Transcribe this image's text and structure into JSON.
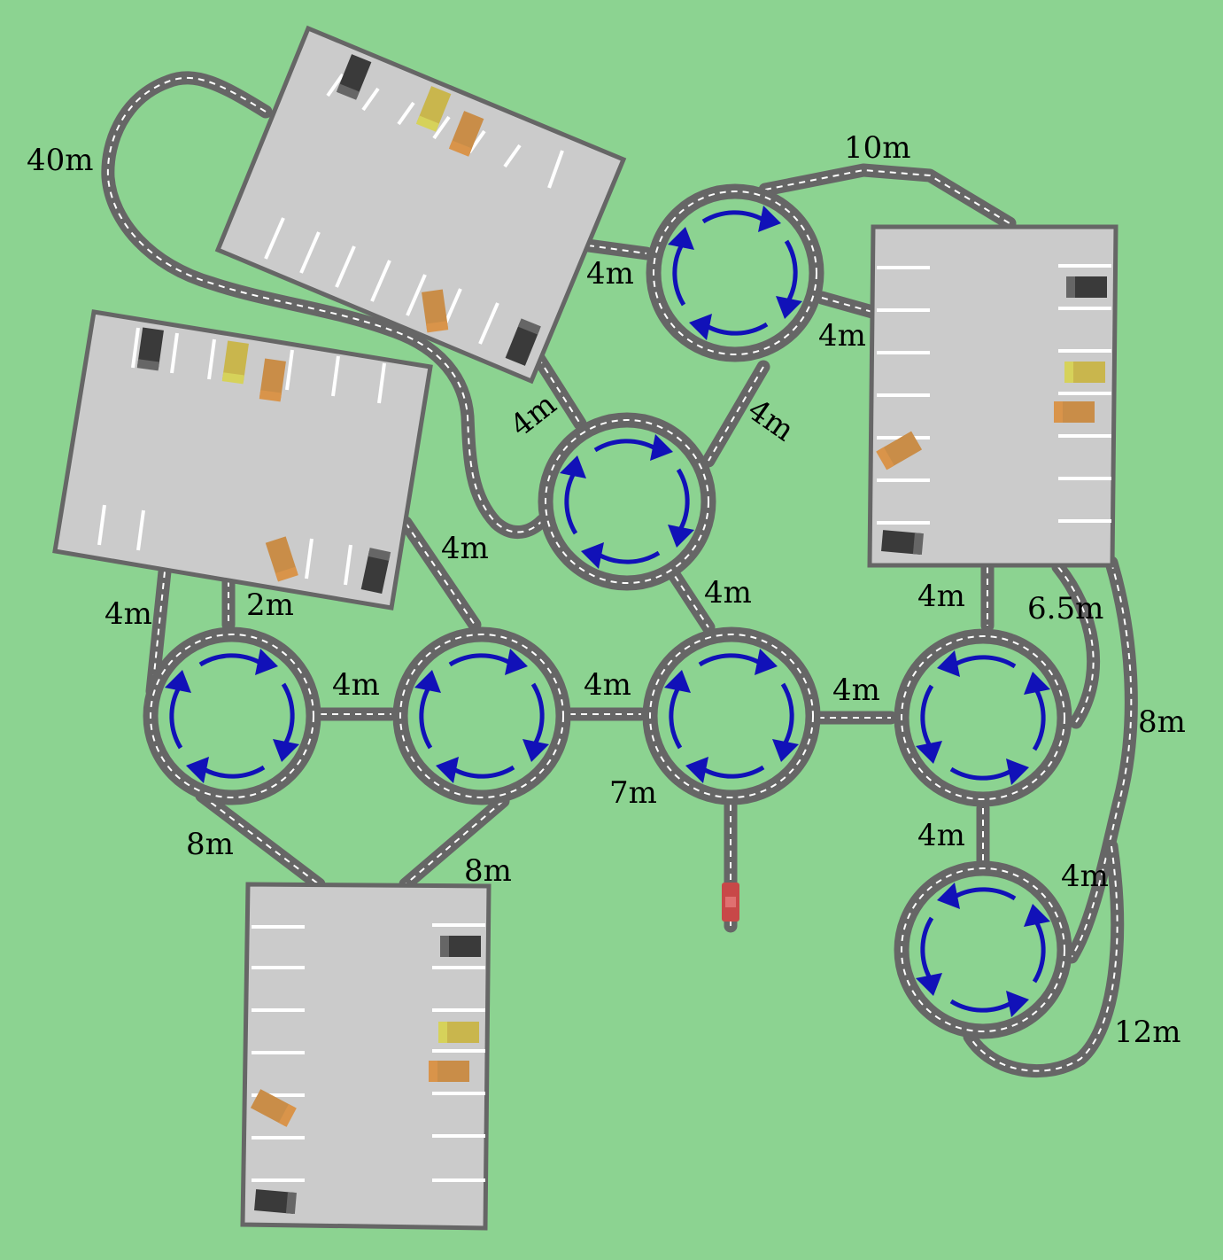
{
  "distance_labels": {
    "lot_loop": "40m",
    "top_loop": "10m",
    "lot_to_roundabout_top": "4m",
    "roundabout_top_to_lot_right": "4m",
    "lot_to_roundabout_mid": "4m",
    "roundabout_top_to_mid": "4m",
    "lot_left_to_center": "4m",
    "roundabout_mid_to_center": "4m",
    "lot_left_to_roundabout_a": "4m",
    "lot_left_to_roundabout_a_2": "2m",
    "roundabout_a_to_b": "4m",
    "roundabout_b_to_center": "4m",
    "center_to_right": "4m",
    "lot_right_to_roundabout_right": "4m",
    "lot_right_side_road": "6.5m",
    "lot_right_long_road": "8m",
    "center_exit": "7m",
    "roundabout_a_to_lot_bottom": "8m",
    "roundabout_b_to_lot_bottom": "8m",
    "roundabout_right_to_bottom": "4m",
    "bottom_roundabout_road": "4m",
    "bottom_loop": "12m"
  },
  "colors": {
    "grass": "#8cd391",
    "road": "#666666",
    "lot": "#cbcbcb",
    "flow_arrows": "#1111b8",
    "ego_car": "#c84848",
    "car_dark": "#3a3a3a",
    "car_yellow": "#c9b64d",
    "car_orange": "#c98d48"
  },
  "legend_icons": {
    "ego_vehicle": "red-car-icon",
    "parked_vehicle": "car-icon",
    "roundabout_flow": "circular-arrow-icon"
  }
}
